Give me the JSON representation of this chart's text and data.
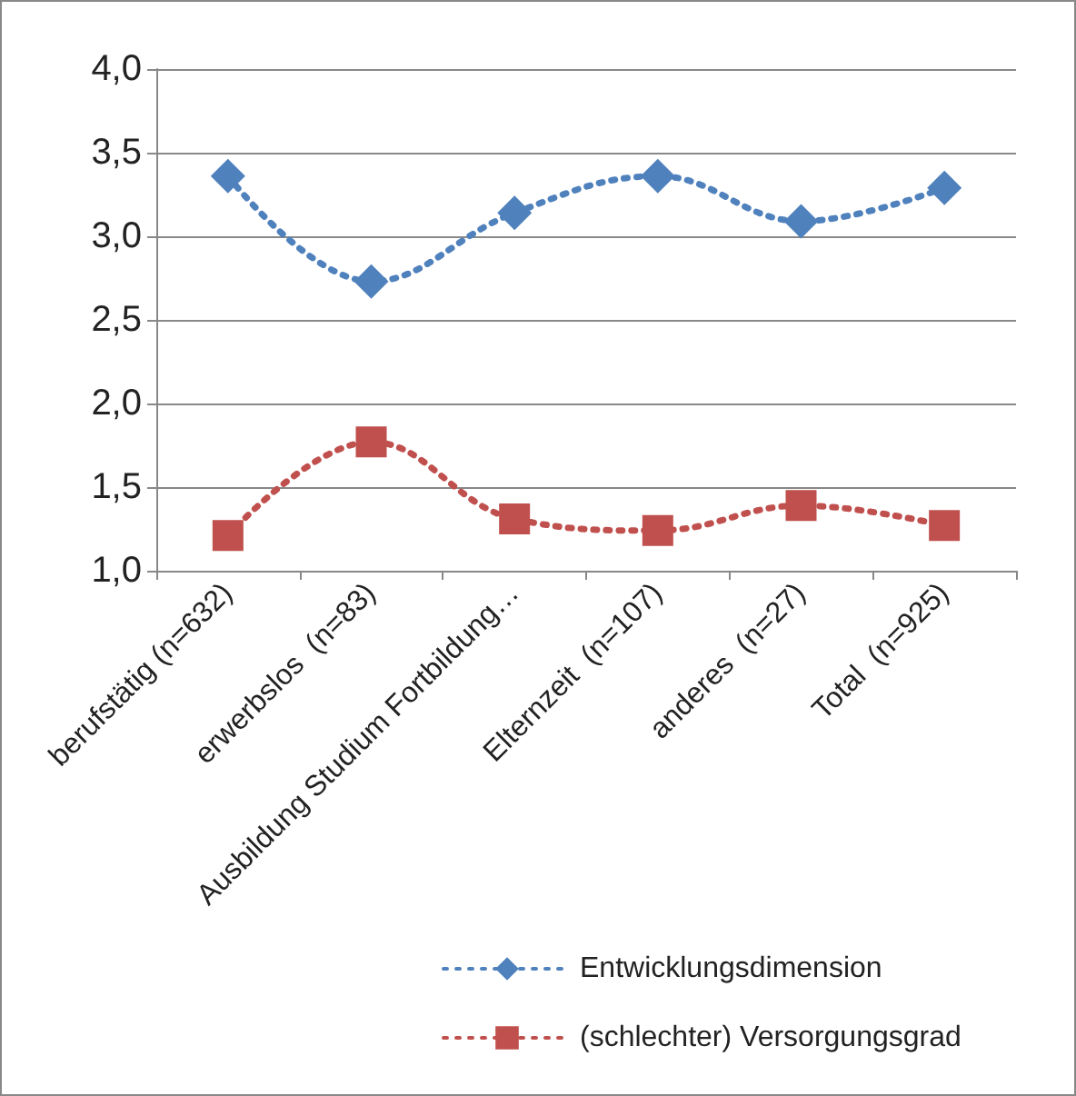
{
  "chart_data": {
    "type": "line",
    "categories": [
      "berufstätig (n=632)",
      "erwerbslos  (n=83)",
      "Ausbildung Studium Fortbildung…",
      "Elternzeit  (n=107)",
      "anderes  (n=27)",
      "Total  (n=925)"
    ],
    "series": [
      {
        "name": "Entwicklungsdimension",
        "color": "#4f81bd",
        "marker": "diamond",
        "values": [
          3.36,
          2.73,
          3.14,
          3.36,
          3.09,
          3.29
        ]
      },
      {
        "name": "(schlechter) Versorgungsgrad",
        "color": "#c0504d",
        "marker": "square",
        "values": [
          1.21,
          1.77,
          1.31,
          1.24,
          1.39,
          1.27
        ]
      }
    ],
    "ylim": [
      1.0,
      4.0
    ],
    "yticks": [
      {
        "value": 1,
        "label": "1,0"
      },
      {
        "value": 1.5,
        "label": "1,5"
      },
      {
        "value": 2,
        "label": "2,0"
      },
      {
        "value": 2.5,
        "label": "2,5"
      },
      {
        "value": 3,
        "label": "3,0"
      },
      {
        "value": 3.5,
        "label": "3,5"
      },
      {
        "value": 4,
        "label": "4,0"
      }
    ],
    "grid": "y",
    "legend": "bottom",
    "line_style": "dotted"
  }
}
